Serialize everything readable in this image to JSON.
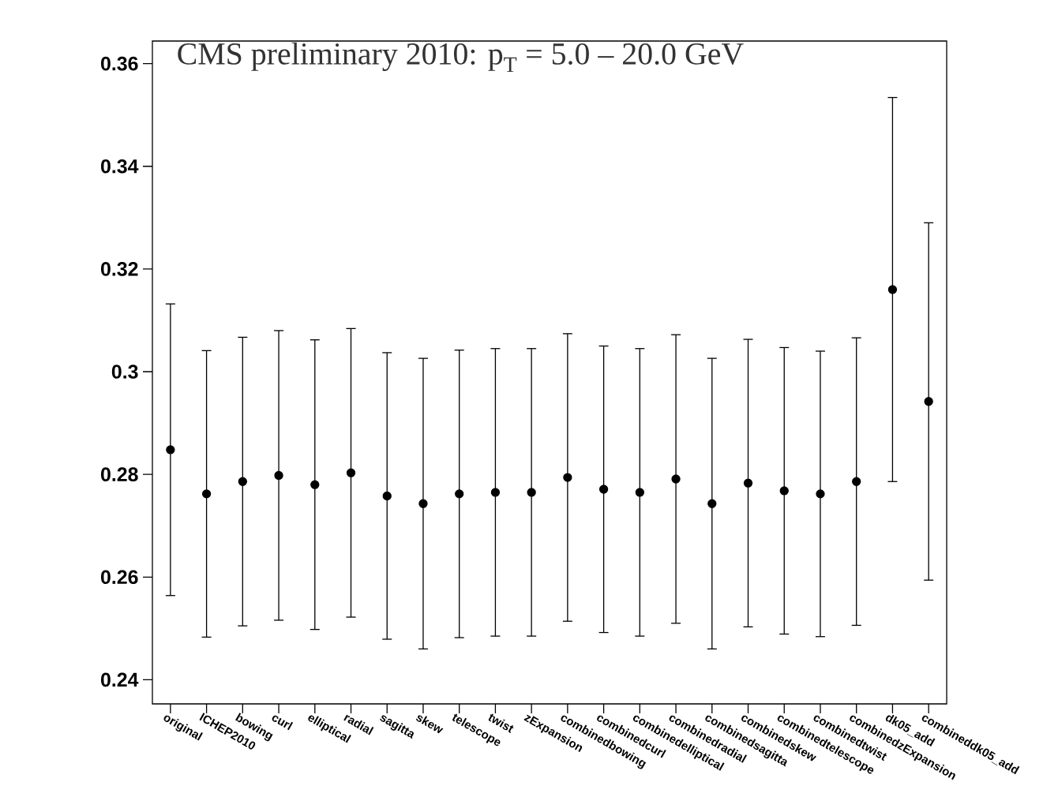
{
  "chart_data": {
    "type": "scatter",
    "title": "CMS preliminary 2010:  p$_{T}$ = 5.0 – 20.0 GeV",
    "categories": [
      "original",
      "ICHEP2010",
      "bowing",
      "curl",
      "elliptical",
      "radial",
      "sagitta",
      "skew",
      "telescope",
      "twist",
      "zExpansion",
      "combinedbowing",
      "combinedcurl",
      "combinedelliptical",
      "combinedradial",
      "combinedsagitta",
      "combinedskew",
      "combinedtelescope",
      "combinedtwist",
      "combinedzExpansion",
      "dk05_add",
      "combineddk05_add"
    ],
    "values": [
      0.2848,
      0.2762,
      0.2786,
      0.2798,
      0.278,
      0.2803,
      0.2758,
      0.2743,
      0.2762,
      0.2765,
      0.2765,
      0.2794,
      0.2771,
      0.2765,
      0.2791,
      0.2743,
      0.2783,
      0.2768,
      0.2762,
      0.2786,
      0.316,
      0.2942
    ],
    "errors": [
      0.0284,
      0.0279,
      0.0281,
      0.0282,
      0.0282,
      0.0281,
      0.0279,
      0.0283,
      0.028,
      0.028,
      0.028,
      0.028,
      0.0279,
      0.028,
      0.0281,
      0.0283,
      0.028,
      0.0279,
      0.0278,
      0.028,
      0.0374,
      0.0348
    ],
    "color": "#000000",
    "marker": "circle",
    "ylim": [
      0.2353,
      0.3644
    ],
    "yticks": [
      0.24,
      0.26,
      0.28,
      0.3,
      0.32,
      0.34,
      0.36
    ]
  }
}
